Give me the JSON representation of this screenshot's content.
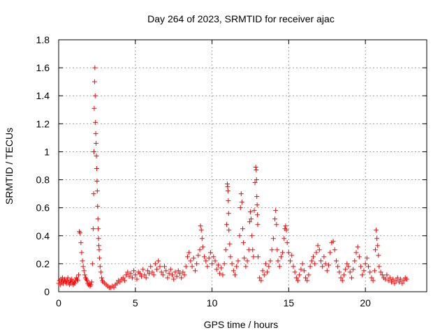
{
  "chart_data": {
    "type": "scatter",
    "title": "Day 264 of 2023, SRMTID for receiver ajac",
    "xlabel": "GPS time / hours",
    "ylabel": "SRMTID / TECUs",
    "xlim": [
      0,
      24
    ],
    "ylim": [
      0,
      1.8
    ],
    "xticks": [
      0,
      5,
      10,
      15,
      20
    ],
    "xtick_labels": [
      "0",
      "5",
      "10",
      "15",
      "20"
    ],
    "yticks": [
      0,
      0.2,
      0.4,
      0.6,
      0.8,
      1,
      1.2,
      1.4,
      1.6,
      1.8
    ],
    "ytick_labels": [
      "0",
      "0.2",
      "0.4",
      "0.6",
      "0.8",
      "1",
      "1.2",
      "1.4",
      "1.6",
      "1.8"
    ],
    "grid": true,
    "marker": "plus",
    "color": "#ff0000",
    "series": [
      {
        "name": "SRMTID",
        "points": [
          [
            0.0,
            0.06
          ],
          [
            0.05,
            0.08
          ],
          [
            0.1,
            0.05
          ],
          [
            0.15,
            0.09
          ],
          [
            0.2,
            0.07
          ],
          [
            0.25,
            0.1
          ],
          [
            0.3,
            0.06
          ],
          [
            0.35,
            0.08
          ],
          [
            0.4,
            0.09
          ],
          [
            0.45,
            0.07
          ],
          [
            0.5,
            0.06
          ],
          [
            0.55,
            0.08
          ],
          [
            0.6,
            0.1
          ],
          [
            0.65,
            0.07
          ],
          [
            0.7,
            0.05
          ],
          [
            0.75,
            0.08
          ],
          [
            0.8,
            0.06
          ],
          [
            0.85,
            0.09
          ],
          [
            0.9,
            0.07
          ],
          [
            0.95,
            0.05
          ],
          [
            1.0,
            0.07
          ],
          [
            1.05,
            0.06
          ],
          [
            1.1,
            0.08
          ],
          [
            1.15,
            0.1
          ],
          [
            1.2,
            0.09
          ],
          [
            1.25,
            0.08
          ],
          [
            1.3,
            0.12
          ],
          [
            1.35,
            0.43
          ],
          [
            1.4,
            0.42
          ],
          [
            1.45,
            0.35
          ],
          [
            1.5,
            0.28
          ],
          [
            1.55,
            0.22
          ],
          [
            1.6,
            0.18
          ],
          [
            1.65,
            0.15
          ],
          [
            1.7,
            0.12
          ],
          [
            1.75,
            0.1
          ],
          [
            1.8,
            0.09
          ],
          [
            1.85,
            0.08
          ],
          [
            1.9,
            0.06
          ],
          [
            1.95,
            0.05
          ],
          [
            2.0,
            0.06
          ],
          [
            2.05,
            0.04
          ],
          [
            2.1,
            0.05
          ],
          [
            2.15,
            0.07
          ],
          [
            2.2,
            0.2
          ],
          [
            2.25,
            0.45
          ],
          [
            2.28,
            0.7
          ],
          [
            2.3,
            1.0
          ],
          [
            2.32,
            1.31
          ],
          [
            2.34,
            1.5
          ],
          [
            2.36,
            1.6
          ],
          [
            2.38,
            1.4
          ],
          [
            2.4,
            1.21
          ],
          [
            2.42,
            1.13
          ],
          [
            2.44,
            1.06
          ],
          [
            2.46,
            0.97
          ],
          [
            2.48,
            0.88
          ],
          [
            2.5,
            0.79
          ],
          [
            2.52,
            0.72
          ],
          [
            2.54,
            0.61
          ],
          [
            2.56,
            0.52
          ],
          [
            2.58,
            0.45
          ],
          [
            2.6,
            0.38
          ],
          [
            2.62,
            0.33
          ],
          [
            2.64,
            0.3
          ],
          [
            2.66,
            0.24
          ],
          [
            2.7,
            0.18
          ],
          [
            2.75,
            0.14
          ],
          [
            2.8,
            0.1
          ],
          [
            2.85,
            0.08
          ],
          [
            2.9,
            0.07
          ],
          [
            3.0,
            0.06
          ],
          [
            3.1,
            0.05
          ],
          [
            3.2,
            0.04
          ],
          [
            3.3,
            0.03
          ],
          [
            3.4,
            0.03
          ],
          [
            3.5,
            0.04
          ],
          [
            3.6,
            0.03
          ],
          [
            3.7,
            0.05
          ],
          [
            3.8,
            0.06
          ],
          [
            3.9,
            0.08
          ],
          [
            4.0,
            0.07
          ],
          [
            4.1,
            0.09
          ],
          [
            4.2,
            0.1
          ],
          [
            4.3,
            0.08
          ],
          [
            4.4,
            0.12
          ],
          [
            4.5,
            0.14
          ],
          [
            4.6,
            0.11
          ],
          [
            4.7,
            0.13
          ],
          [
            4.8,
            0.1
          ],
          [
            4.9,
            0.15
          ],
          [
            5.0,
            0.12
          ],
          [
            5.1,
            0.09
          ],
          [
            5.2,
            0.14
          ],
          [
            5.3,
            0.13
          ],
          [
            5.4,
            0.11
          ],
          [
            5.5,
            0.16
          ],
          [
            5.6,
            0.12
          ],
          [
            5.7,
            0.1
          ],
          [
            5.8,
            0.15
          ],
          [
            5.9,
            0.13
          ],
          [
            6.0,
            0.18
          ],
          [
            6.1,
            0.14
          ],
          [
            6.2,
            0.12
          ],
          [
            6.3,
            0.2
          ],
          [
            6.4,
            0.16
          ],
          [
            6.5,
            0.22
          ],
          [
            6.6,
            0.18
          ],
          [
            6.7,
            0.14
          ],
          [
            6.8,
            0.12
          ],
          [
            6.9,
            0.18
          ],
          [
            7.0,
            0.15
          ],
          [
            7.1,
            0.1
          ],
          [
            7.2,
            0.13
          ],
          [
            7.3,
            0.16
          ],
          [
            7.4,
            0.12
          ],
          [
            7.5,
            0.09
          ],
          [
            7.6,
            0.14
          ],
          [
            7.7,
            0.11
          ],
          [
            7.8,
            0.15
          ],
          [
            7.9,
            0.13
          ],
          [
            8.0,
            0.1
          ],
          [
            8.1,
            0.14
          ],
          [
            8.2,
            0.12
          ],
          [
            8.3,
            0.18
          ],
          [
            8.4,
            0.25
          ],
          [
            8.5,
            0.28
          ],
          [
            8.6,
            0.22
          ],
          [
            8.7,
            0.18
          ],
          [
            8.8,
            0.24
          ],
          [
            8.9,
            0.15
          ],
          [
            9.0,
            0.2
          ],
          [
            9.1,
            0.26
          ],
          [
            9.2,
            0.3
          ],
          [
            9.25,
            0.47
          ],
          [
            9.3,
            0.44
          ],
          [
            9.35,
            0.38
          ],
          [
            9.4,
            0.32
          ],
          [
            9.5,
            0.25
          ],
          [
            9.6,
            0.22
          ],
          [
            9.7,
            0.18
          ],
          [
            9.8,
            0.24
          ],
          [
            9.9,
            0.28
          ],
          [
            10.0,
            0.2
          ],
          [
            10.1,
            0.25
          ],
          [
            10.2,
            0.22
          ],
          [
            10.3,
            0.16
          ],
          [
            10.4,
            0.19
          ],
          [
            10.5,
            0.13
          ],
          [
            10.6,
            0.17
          ],
          [
            10.7,
            0.12
          ],
          [
            10.8,
            0.2
          ],
          [
            10.9,
            0.3
          ],
          [
            10.95,
            0.48
          ],
          [
            11.0,
            0.77
          ],
          [
            11.02,
            0.75
          ],
          [
            11.04,
            0.72
          ],
          [
            11.06,
            0.65
          ],
          [
            11.08,
            0.56
          ],
          [
            11.1,
            0.44
          ],
          [
            11.15,
            0.34
          ],
          [
            11.2,
            0.25
          ],
          [
            11.3,
            0.2
          ],
          [
            11.4,
            0.15
          ],
          [
            11.5,
            0.12
          ],
          [
            11.6,
            0.18
          ],
          [
            11.7,
            0.22
          ],
          [
            11.8,
            0.4
          ],
          [
            11.85,
            0.6
          ],
          [
            11.9,
            0.7
          ],
          [
            11.95,
            0.64
          ],
          [
            12.0,
            0.45
          ],
          [
            12.05,
            0.35
          ],
          [
            12.1,
            0.24
          ],
          [
            12.2,
            0.18
          ],
          [
            12.3,
            0.22
          ],
          [
            12.4,
            0.3
          ],
          [
            12.45,
            0.5
          ],
          [
            12.5,
            0.57
          ],
          [
            12.55,
            0.52
          ],
          [
            12.6,
            0.4
          ],
          [
            12.65,
            0.3
          ],
          [
            12.7,
            0.25
          ],
          [
            12.75,
            0.58
          ],
          [
            12.8,
            0.78
          ],
          [
            12.85,
            0.89
          ],
          [
            12.88,
            0.87
          ],
          [
            12.9,
            0.8
          ],
          [
            12.92,
            0.68
          ],
          [
            12.94,
            0.62
          ],
          [
            12.96,
            0.55
          ],
          [
            12.98,
            0.48
          ],
          [
            13.0,
            0.25
          ],
          [
            13.1,
            0.1
          ],
          [
            13.2,
            0.08
          ],
          [
            13.3,
            0.15
          ],
          [
            13.4,
            0.12
          ],
          [
            13.5,
            0.2
          ],
          [
            13.6,
            0.14
          ],
          [
            13.7,
            0.18
          ],
          [
            13.8,
            0.22
          ],
          [
            13.9,
            0.3
          ],
          [
            14.0,
            0.38
          ],
          [
            14.1,
            0.52
          ],
          [
            14.15,
            0.58
          ],
          [
            14.2,
            0.48
          ],
          [
            14.25,
            0.3
          ],
          [
            14.3,
            0.22
          ],
          [
            14.4,
            0.18
          ],
          [
            14.5,
            0.25
          ],
          [
            14.6,
            0.28
          ],
          [
            14.7,
            0.38
          ],
          [
            14.75,
            0.45
          ],
          [
            14.8,
            0.47
          ],
          [
            14.85,
            0.44
          ],
          [
            14.9,
            0.35
          ],
          [
            15.0,
            0.28
          ],
          [
            15.1,
            0.22
          ],
          [
            15.2,
            0.26
          ],
          [
            15.3,
            0.18
          ],
          [
            15.4,
            0.14
          ],
          [
            15.5,
            0.1
          ],
          [
            15.6,
            0.08
          ],
          [
            15.7,
            0.12
          ],
          [
            15.8,
            0.16
          ],
          [
            15.9,
            0.2
          ],
          [
            16.0,
            0.15
          ],
          [
            16.1,
            0.1
          ],
          [
            16.2,
            0.08
          ],
          [
            16.3,
            0.12
          ],
          [
            16.4,
            0.18
          ],
          [
            16.5,
            0.22
          ],
          [
            16.6,
            0.25
          ],
          [
            16.7,
            0.2
          ],
          [
            16.8,
            0.28
          ],
          [
            16.9,
            0.33
          ],
          [
            17.0,
            0.3
          ],
          [
            17.1,
            0.22
          ],
          [
            17.2,
            0.18
          ],
          [
            17.3,
            0.25
          ],
          [
            17.4,
            0.2
          ],
          [
            17.5,
            0.15
          ],
          [
            17.6,
            0.19
          ],
          [
            17.7,
            0.28
          ],
          [
            17.8,
            0.35
          ],
          [
            17.9,
            0.36
          ],
          [
            18.0,
            0.3
          ],
          [
            18.1,
            0.22
          ],
          [
            18.2,
            0.18
          ],
          [
            18.3,
            0.14
          ],
          [
            18.4,
            0.1
          ],
          [
            18.5,
            0.08
          ],
          [
            18.6,
            0.12
          ],
          [
            18.7,
            0.16
          ],
          [
            18.8,
            0.2
          ],
          [
            18.9,
            0.18
          ],
          [
            19.0,
            0.14
          ],
          [
            19.1,
            0.1
          ],
          [
            19.2,
            0.16
          ],
          [
            19.3,
            0.22
          ],
          [
            19.4,
            0.28
          ],
          [
            19.5,
            0.32
          ],
          [
            19.6,
            0.25
          ],
          [
            19.7,
            0.18
          ],
          [
            19.8,
            0.12
          ],
          [
            19.9,
            0.15
          ],
          [
            20.0,
            0.2
          ],
          [
            20.1,
            0.24
          ],
          [
            20.2,
            0.18
          ],
          [
            20.3,
            0.14
          ],
          [
            20.4,
            0.1
          ],
          [
            20.5,
            0.08
          ],
          [
            20.6,
            0.15
          ],
          [
            20.65,
            0.3
          ],
          [
            20.7,
            0.44
          ],
          [
            20.75,
            0.38
          ],
          [
            20.8,
            0.33
          ],
          [
            20.85,
            0.26
          ],
          [
            20.9,
            0.18
          ],
          [
            21.0,
            0.14
          ],
          [
            21.1,
            0.12
          ],
          [
            21.2,
            0.1
          ],
          [
            21.3,
            0.09
          ],
          [
            21.4,
            0.12
          ],
          [
            21.5,
            0.08
          ],
          [
            21.6,
            0.1
          ],
          [
            21.7,
            0.07
          ],
          [
            21.8,
            0.09
          ],
          [
            21.9,
            0.06
          ],
          [
            22.0,
            0.08
          ],
          [
            22.1,
            0.1
          ],
          [
            22.2,
            0.07
          ],
          [
            22.3,
            0.09
          ],
          [
            22.4,
            0.06
          ],
          [
            22.5,
            0.08
          ],
          [
            22.6,
            0.1
          ],
          [
            22.7,
            0.09
          ]
        ]
      }
    ]
  }
}
